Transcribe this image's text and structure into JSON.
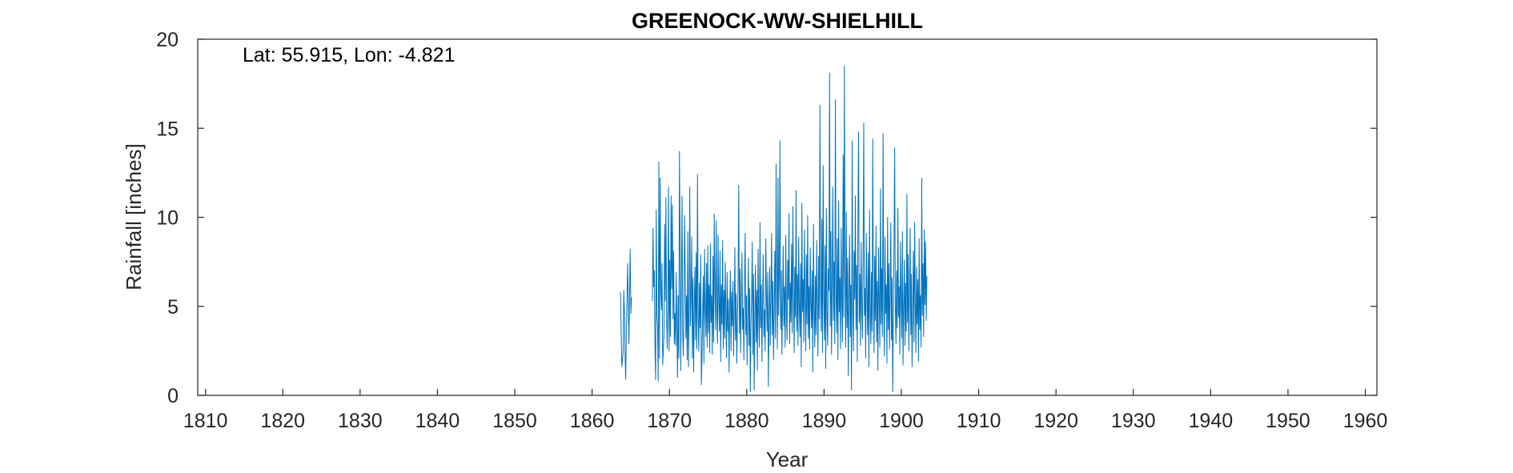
{
  "chart_data": {
    "type": "line",
    "title": "GREENOCK-WW-SHIELHILL",
    "xlabel": "Year",
    "ylabel": "Rainfall [inches]",
    "annotation": "Lat: 55.915, Lon: -4.821",
    "xlim": [
      1809.0,
      1961.5
    ],
    "ylim": [
      0,
      20
    ],
    "xticks": [
      1810,
      1820,
      1830,
      1840,
      1850,
      1860,
      1870,
      1880,
      1890,
      1900,
      1910,
      1920,
      1930,
      1940,
      1950,
      1960
    ],
    "yticks": [
      0,
      5,
      10,
      15,
      20
    ],
    "grid": false,
    "line_color": "#0072BD",
    "series": [
      {
        "sampling": "monthly",
        "segments": [
          {
            "start": 1863.6,
            "values": [
              5.8,
              5.7,
              3.4,
              1.6,
              2.1,
              2.4,
              5.9,
              4.7,
              2.3,
              0.9,
              3.6,
              5.4,
              7.4,
              4.9,
              2.9,
              5.9,
              8.2,
              4.6,
              5.5
            ]
          },
          {
            "start": 1867.8,
            "values": [
              5.3,
              9.4,
              6.1,
              7.0,
              2.8,
              0.9,
              10.4,
              4.5,
              3.9,
              0.8,
              13.1,
              2.1,
              12.2,
              6.1,
              4.8,
              7.4,
              1.7,
              2.6,
              3.5,
              9.6,
              5.3,
              11.1,
              4.7,
              2.6,
              5.0,
              11.7,
              2.5,
              7.6,
              3.3,
              11.2,
              6.0,
              10.7,
              4.3,
              8.1,
              2.9,
              4.6,
              2.8,
              6.9,
              3.9,
              1.0,
              5.6,
              2.1,
              13.7,
              8.6,
              1.4,
              6.4,
              11.2,
              3.6,
              2.2,
              4.7,
              10.1,
              6.8,
              3.2,
              5.6,
              2.0,
              9.2,
              1.6,
              4.4,
              11.7,
              3.9,
              5.4,
              8.9,
              2.1,
              6.6,
              1.3,
              4.8,
              7.2,
              3.1,
              8.0,
              2.6,
              12.4,
              4.4,
              2.5,
              6.3,
              3.8,
              7.9,
              0.6,
              2.2,
              4.9,
              6.7,
              1.8,
              8.2,
              5.0,
              3.3,
              7.4,
              2.7,
              8.4,
              3.5,
              6.2,
              2.4,
              8.5,
              4.1,
              5.6,
              2.3,
              7.8,
              3.0,
              10.2,
              6.0,
              3.7,
              9.8,
              4.5,
              2.9,
              9.0,
              5.2,
              3.6,
              8.1,
              1.9,
              6.2,
              4.0,
              8.7,
              2.6,
              5.9,
              3.2,
              7.5,
              4.6,
              2.1,
              6.9,
              3.6,
              5.4,
              1.3,
              4.8,
              7.0,
              2.5,
              5.8,
              3.9,
              6.4,
              2.2,
              4.7,
              8.3,
              3.1,
              5.7,
              1.8,
              4.2,
              6.5,
              11.8,
              3.5,
              7.1,
              2.4,
              5.3,
              8.0,
              3.7,
              4.9,
              2.0,
              6.3,
              9.1,
              3.4,
              5.6,
              1.7,
              4.4,
              7.7,
              2.8,
              6.0,
              0.2,
              3.9,
              5.5,
              8.6,
              2.3,
              6.8,
              0.3,
              4.1,
              7.3,
              3.0,
              5.9,
              1.4,
              8.2,
              4.6,
              2.7,
              9.7,
              3.8,
              6.2,
              1.9,
              5.1,
              7.9,
              3.3,
              4.8,
              2.5,
              8.8,
              5.7,
              3.6,
              6.9,
              0.5,
              4.3,
              7.2,
              2.8,
              5.5,
              9.1,
              3.4,
              6.4,
              2.0,
              4.7,
              8.1,
              3.2,
              13.0,
              5.8,
              2.6,
              12.2,
              4.5,
              6.7,
              14.3,
              3.7,
              7.0,
              2.3,
              5.2,
              8.4,
              3.9,
              6.1,
              2.7,
              9.0,
              4.8,
              3.1,
              7.6,
              5.4,
              10.2,
              2.9,
              6.3,
              4.1,
              8.5,
              3.5,
              10.6,
              5.7,
              2.4,
              7.2,
              4.4,
              11.5,
              3.6,
              6.8,
              2.8,
              8.9,
              5.0,
              3.3,
              7.4,
              1.6,
              10.8,
              4.7,
              6.5,
              3.0,
              9.3,
              5.6,
              2.5,
              7.9,
              4.0,
              10.1,
              3.2,
              6.1,
              2.6,
              8.3,
              5.3,
              3.8,
              7.0,
              1.3,
              9.6,
              4.9,
              2.7,
              6.7,
              3.4,
              8.7,
              5.1,
              2.2,
              7.8,
              4.3,
              16.3,
              6.0,
              3.6,
              9.9,
              2.4,
              12.9,
              5.5,
              3.1,
              8.4,
              1.5,
              10.5,
              4.6,
              2.8,
              7.1,
              5.9,
              18.1,
              3.9,
              9.2,
              2.3,
              6.4,
              11.7,
              4.2,
              7.5,
              2.9,
              16.6,
              5.8,
              3.5,
              8.8,
              2.0,
              10.9,
              4.7,
              6.6,
              2.6,
              9.4,
              5.2,
              3.0,
              13.5,
              4.4,
              18.5,
              6.9,
              2.7,
              10.3,
              3.8,
              7.7,
              1.1,
              5.6,
              9.0,
              3.3,
              6.2,
              0.3,
              14.3,
              4.9,
              2.5,
              8.1,
              5.4,
              11.2,
              3.7,
              7.3,
              1.9,
              9.8,
              14.8,
              4.1,
              6.8,
              2.8,
              8.6,
              5.0,
              3.2,
              7.5,
              15.3,
              4.5,
              6.0,
              2.1,
              9.1,
              5.7,
              3.4,
              8.0,
              1.6,
              10.4,
              4.8,
              2.9,
              6.9,
              3.6,
              14.4,
              5.3,
              2.4,
              7.8,
              4.2,
              9.5,
              3.0,
              6.4,
              1.4,
              8.3,
              5.5,
              2.7,
              11.6,
              4.0,
              7.1,
              3.3,
              14.7,
              5.1,
              2.2,
              8.9,
              4.6,
              6.2,
              1.8,
              10.0,
              3.7,
              7.4,
              2.6,
              5.9,
              9.7,
              3.1,
              6.6,
              0.2,
              4.3,
              8.4,
              13.9,
              5.0,
              2.9,
              7.0,
              3.8,
              10.5,
              4.4,
              6.1,
              2.3,
              8.6,
              5.4,
              3.2,
              9.2,
              1.7,
              4.9,
              7.6,
              2.8,
              6.3,
              3.6,
              11.3,
              4.1,
              7.9,
              2.5,
              5.8,
              9.4,
              3.4,
              6.8,
              1.6,
              4.7,
              8.1,
              3.0,
              9.7,
              5.3,
              2.4,
              7.2,
              4.0,
              6.5,
              1.9,
              8.8,
              3.7,
              5.6,
              2.7,
              12.2,
              4.5,
              7.4,
              3.3,
              9.3,
              5.1,
              8.6,
              4.2,
              6.7
            ]
          }
        ]
      }
    ]
  }
}
